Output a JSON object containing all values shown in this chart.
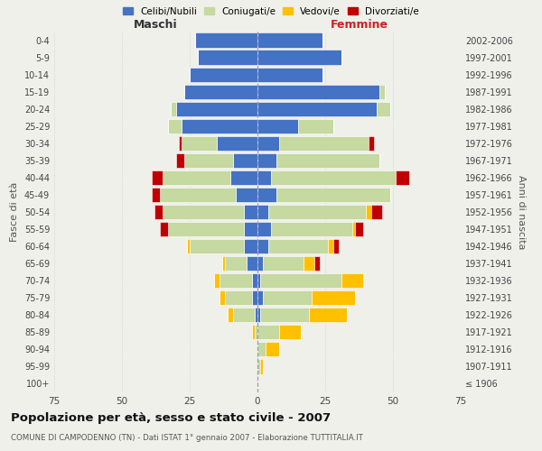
{
  "age_groups": [
    "100+",
    "95-99",
    "90-94",
    "85-89",
    "80-84",
    "75-79",
    "70-74",
    "65-69",
    "60-64",
    "55-59",
    "50-54",
    "45-49",
    "40-44",
    "35-39",
    "30-34",
    "25-29",
    "20-24",
    "15-19",
    "10-14",
    "5-9",
    "0-4"
  ],
  "birth_years": [
    "≤ 1906",
    "1907-1911",
    "1912-1916",
    "1917-1921",
    "1922-1926",
    "1927-1931",
    "1932-1936",
    "1937-1941",
    "1942-1946",
    "1947-1951",
    "1952-1956",
    "1957-1961",
    "1962-1966",
    "1967-1971",
    "1972-1976",
    "1977-1981",
    "1982-1986",
    "1987-1991",
    "1992-1996",
    "1997-2001",
    "2002-2006"
  ],
  "colors": {
    "celibi": "#4472c4",
    "coniugati": "#c5d9a0",
    "vedovi": "#ffc000",
    "divorziati": "#c00000",
    "background": "#f0f0eb",
    "grid": "#cccccc"
  },
  "maschi_celibi": [
    0,
    0,
    0,
    0,
    1,
    2,
    2,
    4,
    5,
    5,
    5,
    8,
    10,
    9,
    15,
    28,
    30,
    27,
    25,
    22,
    23
  ],
  "maschi_coniugati": [
    0,
    0,
    0,
    1,
    8,
    10,
    12,
    8,
    20,
    28,
    30,
    28,
    25,
    18,
    13,
    5,
    2,
    0,
    0,
    0,
    0
  ],
  "maschi_vedovi": [
    0,
    0,
    0,
    1,
    2,
    2,
    2,
    1,
    1,
    0,
    0,
    0,
    0,
    0,
    0,
    0,
    0,
    0,
    0,
    0,
    0
  ],
  "maschi_divorziati": [
    0,
    0,
    0,
    0,
    0,
    0,
    0,
    0,
    0,
    3,
    3,
    3,
    4,
    3,
    1,
    0,
    0,
    0,
    0,
    0,
    0
  ],
  "femmine_celibi": [
    0,
    0,
    0,
    0,
    1,
    2,
    1,
    2,
    4,
    5,
    4,
    7,
    5,
    7,
    8,
    15,
    44,
    45,
    24,
    31,
    24
  ],
  "femmine_coniugati": [
    0,
    1,
    3,
    8,
    18,
    18,
    30,
    15,
    22,
    30,
    36,
    42,
    46,
    38,
    33,
    13,
    5,
    2,
    0,
    0,
    0
  ],
  "femmine_vedovi": [
    0,
    1,
    5,
    8,
    14,
    16,
    8,
    4,
    2,
    1,
    2,
    0,
    0,
    0,
    0,
    0,
    0,
    0,
    0,
    0,
    0
  ],
  "femmine_divorziati": [
    0,
    0,
    0,
    0,
    0,
    0,
    0,
    2,
    2,
    3,
    4,
    0,
    5,
    0,
    2,
    0,
    0,
    0,
    0,
    0,
    0
  ],
  "xlim": 75,
  "title": "Popolazione per età, sesso e stato civile - 2007",
  "subtitle": "COMUNE DI CAMPODENNO (TN) - Dati ISTAT 1° gennaio 2007 - Elaborazione TUTTITALIA.IT",
  "ylabel_left": "Fasce di età",
  "ylabel_right": "Anni di nascita",
  "xlabel_left": "Maschi",
  "xlabel_right": "Femmine"
}
